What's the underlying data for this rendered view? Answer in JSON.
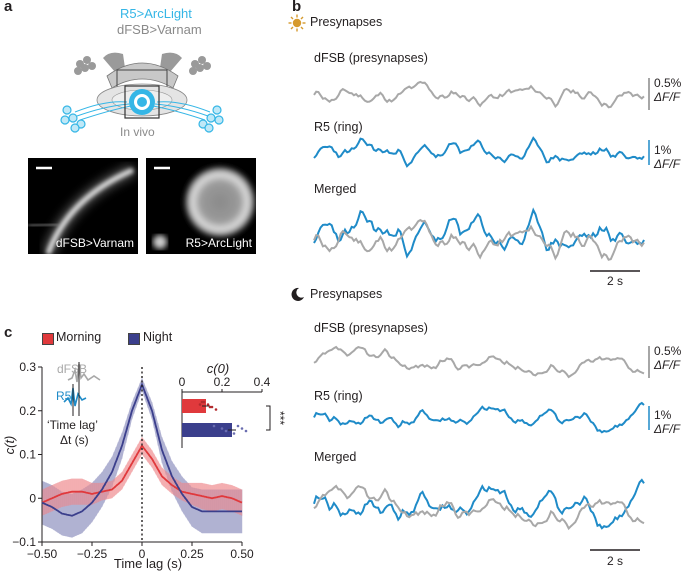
{
  "colors": {
    "gray": "#a8a8a8",
    "blue": "#1f8bc8",
    "cyan": "#35b6e6",
    "morning": "#e0393c",
    "morning_fill": "#f2a3a5",
    "night": "#3b3f8c",
    "night_fill": "#a6a7cc",
    "sun": "#d69a2d",
    "text": "#231f20"
  },
  "panel_a": {
    "letter": "a",
    "label_r5": "R5>ArcLight",
    "label_dfsb": "dFSB>Varnam",
    "in_vivo": "In vivo",
    "image1_caption": "dFSB>Varnam",
    "image2_caption": "R5>ArcLight"
  },
  "panel_b": {
    "letter": "b",
    "day": {
      "icon": "sun-icon",
      "title": "Presynapses",
      "dfsb_label": "dFSB (presynapses)",
      "r5_label": "R5 (ring)",
      "merged_label": "Merged",
      "scale_dfsb_value": "0.5%",
      "scale_r5_value": "1%",
      "scale_unit": "ΔF/F",
      "time_scale": "2 s"
    },
    "night": {
      "icon": "moon-icon",
      "title": "Presynapses",
      "dfsb_label": "dFSB (presynapses)",
      "r5_label": "R5 (ring)",
      "merged_label": "Merged",
      "scale_dfsb_value": "0.5%",
      "scale_r5_value": "1%",
      "scale_unit": "ΔF/F",
      "time_scale": "2 s"
    }
  },
  "panel_c": {
    "letter": "c",
    "legend": [
      {
        "name": "Morning",
        "color": "#e0393c"
      },
      {
        "name": "Night",
        "color": "#3b3f8c"
      }
    ],
    "inset_dfsb": "dFSB",
    "inset_r5": "R5",
    "inset_time_lag": "‘Time lag’",
    "inset_dt": "Δt (s)",
    "significance": "***"
  },
  "chart_data": [
    {
      "type": "line",
      "xlabel": "Time lag (s)",
      "ylabel": "c(t)",
      "xlim": [
        -0.5,
        0.5
      ],
      "ylim": [
        -0.1,
        0.3
      ],
      "xticks": [
        "−0.50",
        "−0.25",
        "0",
        "0.25",
        "0.50"
      ],
      "yticks": [
        "−0.1",
        "0",
        "0.1",
        "0.2",
        "0.3"
      ],
      "vertical_reference_line": 0,
      "series": [
        {
          "name": "Morning",
          "x": [
            -0.5,
            -0.45,
            -0.4,
            -0.35,
            -0.3,
            -0.25,
            -0.2,
            -0.15,
            -0.1,
            -0.05,
            0,
            0.05,
            0.1,
            0.15,
            0.2,
            0.25,
            0.3,
            0.35,
            0.4,
            0.45,
            0.5
          ],
          "y": [
            -0.01,
            0.0,
            0.01,
            0.015,
            0.015,
            0.01,
            0.015,
            0.02,
            0.04,
            0.08,
            0.12,
            0.09,
            0.05,
            0.03,
            0.015,
            0.01,
            0.005,
            0.0,
            0.005,
            0.0,
            -0.01
          ],
          "error": [
            0.03,
            0.03,
            0.03,
            0.03,
            0.03,
            0.025,
            0.02,
            0.02,
            0.02,
            0.02,
            0.02,
            0.02,
            0.02,
            0.02,
            0.02,
            0.025,
            0.03,
            0.03,
            0.03,
            0.03,
            0.03
          ]
        },
        {
          "name": "Night",
          "x": [
            -0.5,
            -0.45,
            -0.4,
            -0.35,
            -0.3,
            -0.25,
            -0.2,
            -0.15,
            -0.1,
            -0.05,
            0,
            0.05,
            0.1,
            0.15,
            0.2,
            0.25,
            0.3,
            0.35,
            0.4,
            0.45,
            0.5
          ],
          "y": [
            -0.01,
            -0.02,
            -0.035,
            -0.04,
            -0.03,
            -0.01,
            0.02,
            0.06,
            0.12,
            0.2,
            0.26,
            0.2,
            0.11,
            0.05,
            0.01,
            -0.02,
            -0.03,
            -0.03,
            -0.03,
            -0.03,
            -0.03
          ],
          "error": [
            0.05,
            0.05,
            0.05,
            0.05,
            0.05,
            0.045,
            0.04,
            0.035,
            0.03,
            0.02,
            0.015,
            0.02,
            0.03,
            0.035,
            0.04,
            0.045,
            0.05,
            0.05,
            0.05,
            0.05,
            0.05
          ]
        }
      ]
    },
    {
      "type": "bar",
      "title": "c(0)",
      "xlim": [
        0,
        0.4
      ],
      "xticks": [
        "0",
        "0.2",
        "0.4"
      ],
      "categories": [
        "Morning",
        "Night"
      ],
      "values": [
        0.12,
        0.25
      ],
      "points": [
        [
          0.11,
          0.13,
          0.15,
          0.17,
          0.1,
          0.09,
          0.14
        ],
        [
          0.16,
          0.2,
          0.22,
          0.26,
          0.28,
          0.3,
          0.32
        ]
      ],
      "significance": "***"
    }
  ]
}
